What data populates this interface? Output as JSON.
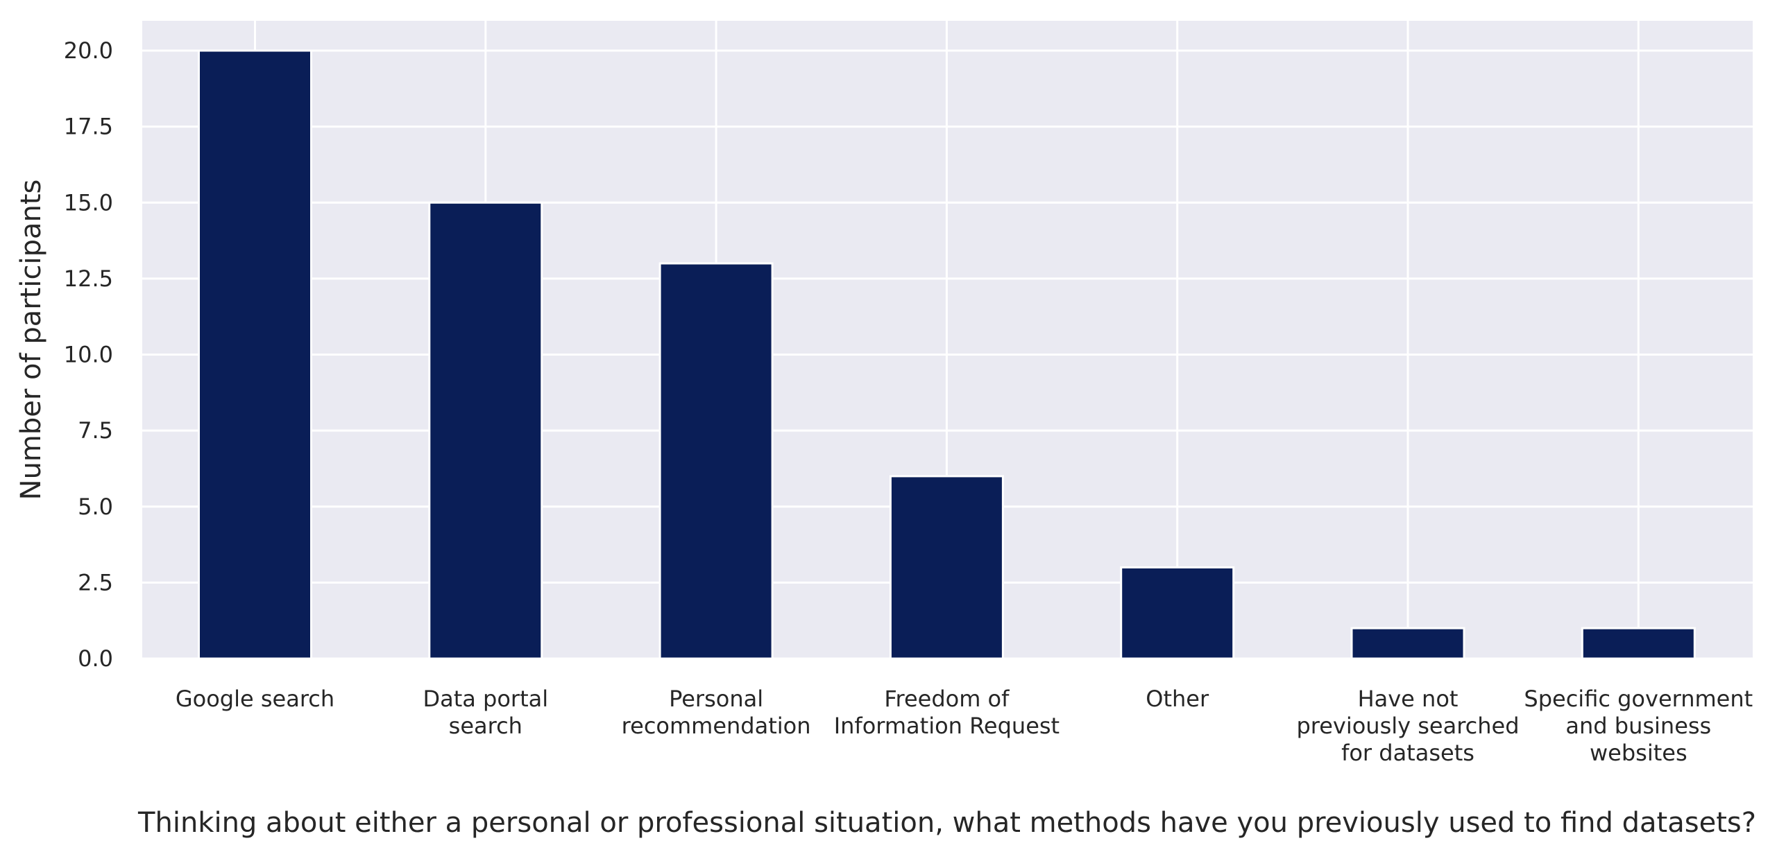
{
  "chart_data": {
    "type": "bar",
    "title": "",
    "xlabel": "Thinking about either a personal or professional situation, what methods have you previously used to find datasets?",
    "ylabel": "Number of participants",
    "categories": [
      [
        "Google search"
      ],
      [
        "Data portal",
        "search"
      ],
      [
        "Personal",
        "recommendation"
      ],
      [
        "Freedom of",
        "Information Request"
      ],
      [
        "Other"
      ],
      [
        "Have not",
        "previously searched",
        "for datasets"
      ],
      [
        "Specific government",
        "and business",
        "websites"
      ]
    ],
    "values": [
      20,
      15,
      13,
      6,
      3,
      1,
      1
    ],
    "ylim": [
      0,
      21
    ],
    "yticks": [
      "0.0",
      "2.5",
      "5.0",
      "7.5",
      "10.0",
      "12.5",
      "15.0",
      "17.5",
      "20.0"
    ],
    "grid": true,
    "legend": "none",
    "colors": {
      "bar": "#0a1e57",
      "background": "#eaeaf2",
      "grid": "#ffffff",
      "text": "#262626"
    }
  }
}
